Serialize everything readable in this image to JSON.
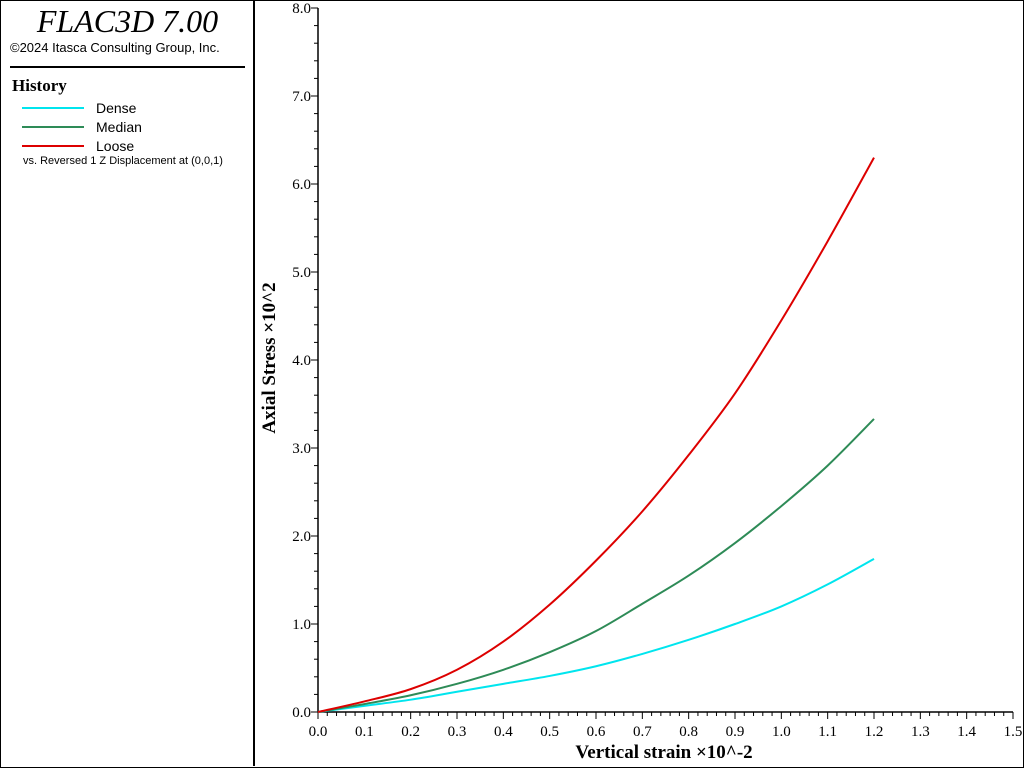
{
  "app": {
    "title": "FLAC3D 7.00",
    "copyright": "©2024 Itasca Consulting Group, Inc."
  },
  "history": {
    "title": "History",
    "vs_note": "vs. Reversed 1 Z Displacement at (0,0,1)"
  },
  "colors": {
    "dense": "#00e5ee",
    "median": "#2e8b57",
    "loose": "#dd0000"
  },
  "chart_data": {
    "type": "line",
    "xlabel": "Vertical strain ×10^-2",
    "ylabel": "Axial Stress ×10^2",
    "xlim": [
      0,
      1.5
    ],
    "ylim": [
      0,
      8
    ],
    "xticks": [
      "0.0",
      "0.1",
      "0.2",
      "0.3",
      "0.4",
      "0.5",
      "0.6",
      "0.7",
      "0.8",
      "0.9",
      "1.0",
      "1.1",
      "1.2",
      "1.3",
      "1.4",
      "1.5"
    ],
    "yticks": [
      "0.0",
      "1.0",
      "2.0",
      "3.0",
      "4.0",
      "5.0",
      "6.0",
      "7.0",
      "8.0"
    ],
    "grid": false,
    "legend": "left-panel",
    "series": [
      {
        "name": "Dense",
        "color": "#00e5ee",
        "x": [
          0,
          0.1,
          0.2,
          0.3,
          0.4,
          0.5,
          0.6,
          0.7,
          0.8,
          0.9,
          1.0,
          1.1,
          1.2
        ],
        "y": [
          0,
          0.07,
          0.14,
          0.23,
          0.32,
          0.41,
          0.52,
          0.66,
          0.82,
          1.0,
          1.2,
          1.45,
          1.74
        ]
      },
      {
        "name": "Median",
        "color": "#2e8b57",
        "x": [
          0,
          0.1,
          0.2,
          0.3,
          0.4,
          0.5,
          0.6,
          0.7,
          0.8,
          0.9,
          1.0,
          1.1,
          1.2
        ],
        "y": [
          0,
          0.09,
          0.19,
          0.32,
          0.48,
          0.68,
          0.92,
          1.23,
          1.55,
          1.92,
          2.34,
          2.8,
          3.33
        ]
      },
      {
        "name": "Loose",
        "color": "#dd0000",
        "x": [
          0,
          0.1,
          0.2,
          0.3,
          0.4,
          0.5,
          0.6,
          0.7,
          0.8,
          0.9,
          1.0,
          1.1,
          1.2
        ],
        "y": [
          0,
          0.12,
          0.26,
          0.48,
          0.8,
          1.22,
          1.72,
          2.28,
          2.92,
          3.62,
          4.45,
          5.35,
          6.3
        ]
      }
    ]
  }
}
